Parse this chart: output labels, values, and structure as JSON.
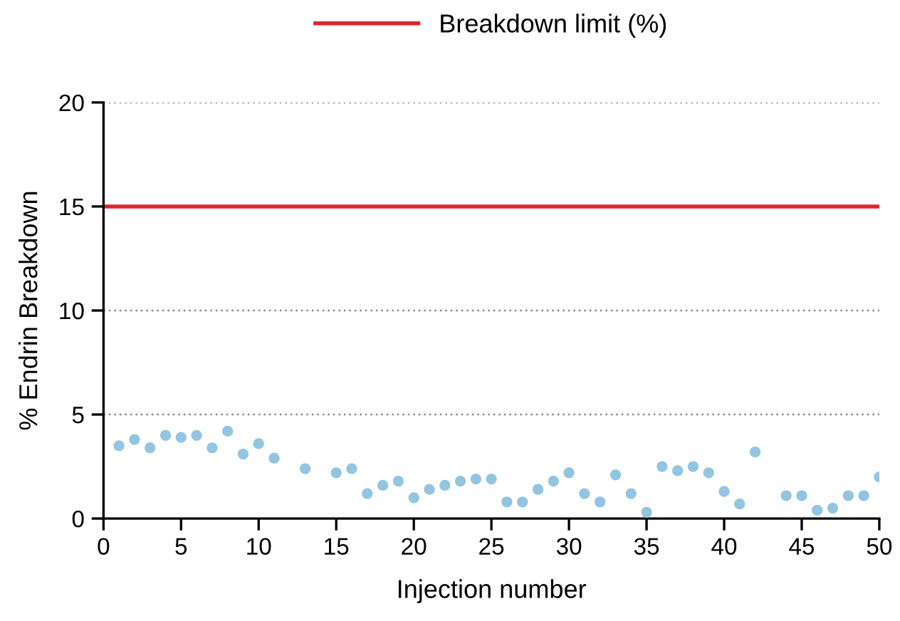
{
  "chart_data": {
    "type": "scatter",
    "xlabel": "Injection number",
    "ylabel": "% Endrin Breakdown",
    "x": [
      1,
      2,
      3,
      4,
      5,
      6,
      7,
      8,
      9,
      10,
      11,
      13,
      15,
      16,
      17,
      18,
      19,
      20,
      21,
      22,
      23,
      24,
      25,
      26,
      27,
      28,
      29,
      30,
      31,
      32,
      33,
      34,
      35,
      36,
      37,
      38,
      39,
      40,
      41,
      42,
      44,
      45,
      46,
      47,
      48,
      49,
      50
    ],
    "series": [
      {
        "color": "#92c5e2",
        "values": [
          3.5,
          3.8,
          3.4,
          4.0,
          3.9,
          4.0,
          3.4,
          4.2,
          3.1,
          3.6,
          2.9,
          2.4,
          2.2,
          2.4,
          1.2,
          1.6,
          1.8,
          1.0,
          1.4,
          1.6,
          1.8,
          1.9,
          1.9,
          0.8,
          0.8,
          1.4,
          1.8,
          2.2,
          1.2,
          0.8,
          2.1,
          1.2,
          0.3,
          2.5,
          2.3,
          2.5,
          2.2,
          1.3,
          0.7,
          3.2,
          1.1,
          1.1,
          0.4,
          0.5,
          1.1,
          1.1,
          2.0
        ]
      }
    ],
    "ref_lines": [
      {
        "axis": "y",
        "value": 15,
        "label": "Breakdown limit (%)",
        "color": "#e3242b",
        "line_style": "solid"
      }
    ],
    "xlim": [
      0,
      50
    ],
    "xticks": [
      0,
      5,
      10,
      15,
      20,
      25,
      30,
      35,
      40,
      45,
      50
    ],
    "ylim": [
      0,
      20
    ],
    "yticks": [
      0,
      5,
      10,
      15,
      20
    ],
    "grid": "y",
    "legend": "top",
    "marker": "circle"
  }
}
